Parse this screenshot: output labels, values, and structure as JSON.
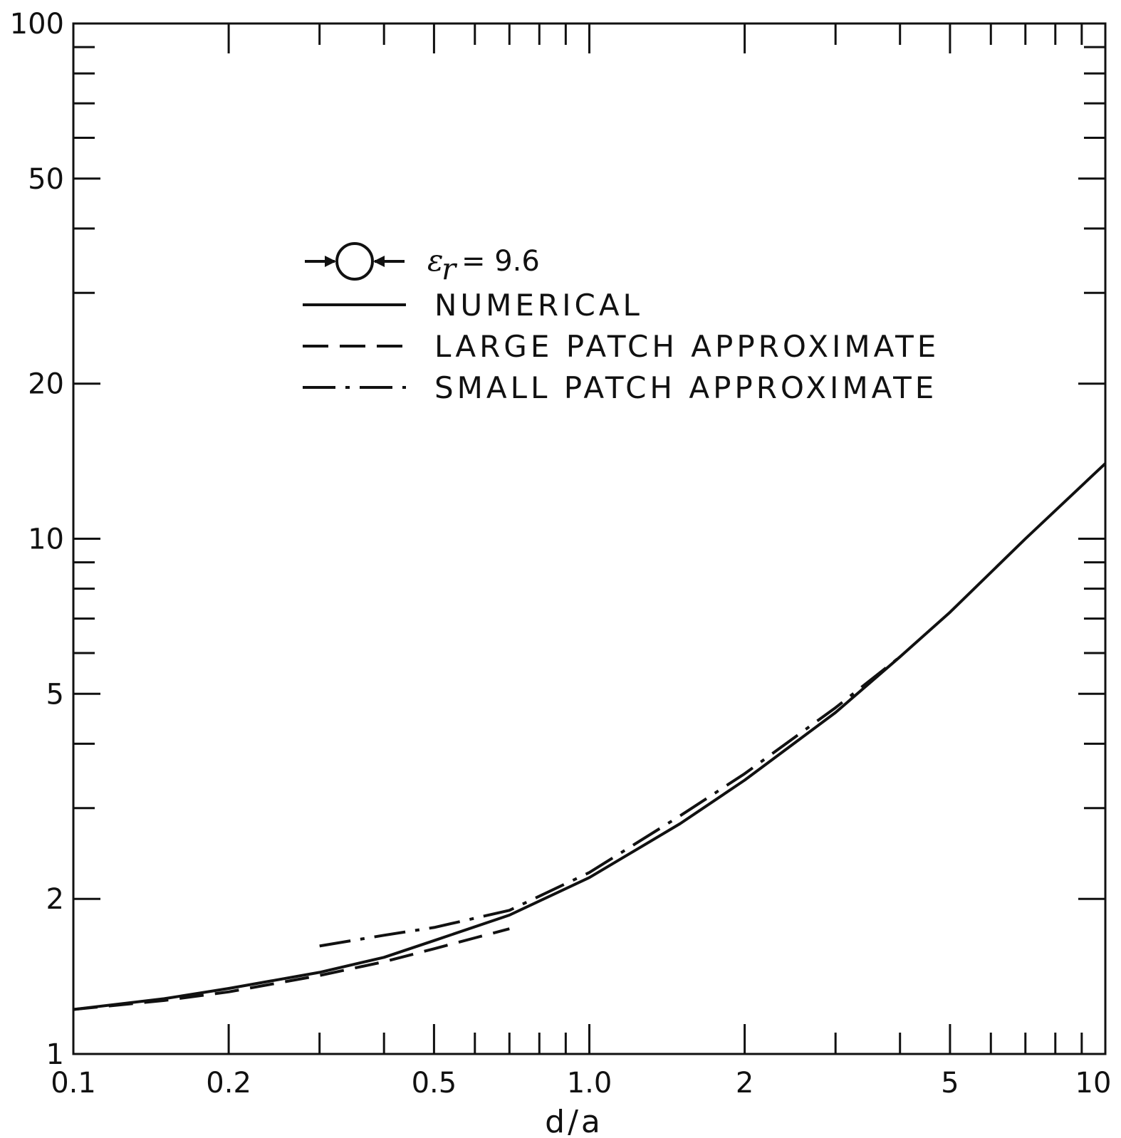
{
  "chart_data": {
    "type": "line",
    "title": "",
    "xlabel": "d/a",
    "ylabel": "",
    "x_scale": "log",
    "y_scale": "log",
    "xlim": [
      0.1,
      10
    ],
    "ylim": [
      1,
      100
    ],
    "grid": false,
    "legend_position": "upper-left",
    "x_tick_labels": [
      "0.1",
      "0.2",
      "0.5",
      "1.0",
      "2",
      "5",
      "10"
    ],
    "y_tick_labels": [
      "1",
      "2",
      "5",
      "10",
      "20",
      "50",
      "100"
    ],
    "legend": {
      "symbol": "ε",
      "subscript": "r",
      "eq": "= 9.6",
      "entries": [
        "NUMERICAL",
        "LARGE PATCH APPROXIMATE",
        "SMALL PATCH APPROXIMATE"
      ]
    },
    "series": [
      {
        "name": "NUMERICAL",
        "style": "solid",
        "x": [
          0.1,
          0.15,
          0.2,
          0.3,
          0.4,
          0.5,
          0.7,
          1.0,
          1.5,
          2.0,
          3.0,
          4.0,
          5.0,
          7.0,
          10.0
        ],
        "y": [
          1.22,
          1.28,
          1.34,
          1.44,
          1.54,
          1.66,
          1.86,
          2.2,
          2.8,
          3.4,
          4.6,
          5.9,
          7.2,
          10.0,
          14.0
        ]
      },
      {
        "name": "LARGE PATCH APPROXIMATE",
        "style": "dashed",
        "x": [
          0.1,
          0.15,
          0.2,
          0.3,
          0.4,
          0.5,
          0.6,
          0.7
        ],
        "y": [
          1.22,
          1.27,
          1.32,
          1.42,
          1.51,
          1.6,
          1.68,
          1.75
        ]
      },
      {
        "name": "SMALL PATCH APPROXIMATE",
        "style": "dashdot",
        "x": [
          0.3,
          0.4,
          0.5,
          0.7,
          1.0,
          1.5,
          2.0,
          3.0,
          4.0
        ],
        "y": [
          1.62,
          1.7,
          1.76,
          1.9,
          2.25,
          2.9,
          3.5,
          4.7,
          5.9
        ]
      }
    ]
  }
}
